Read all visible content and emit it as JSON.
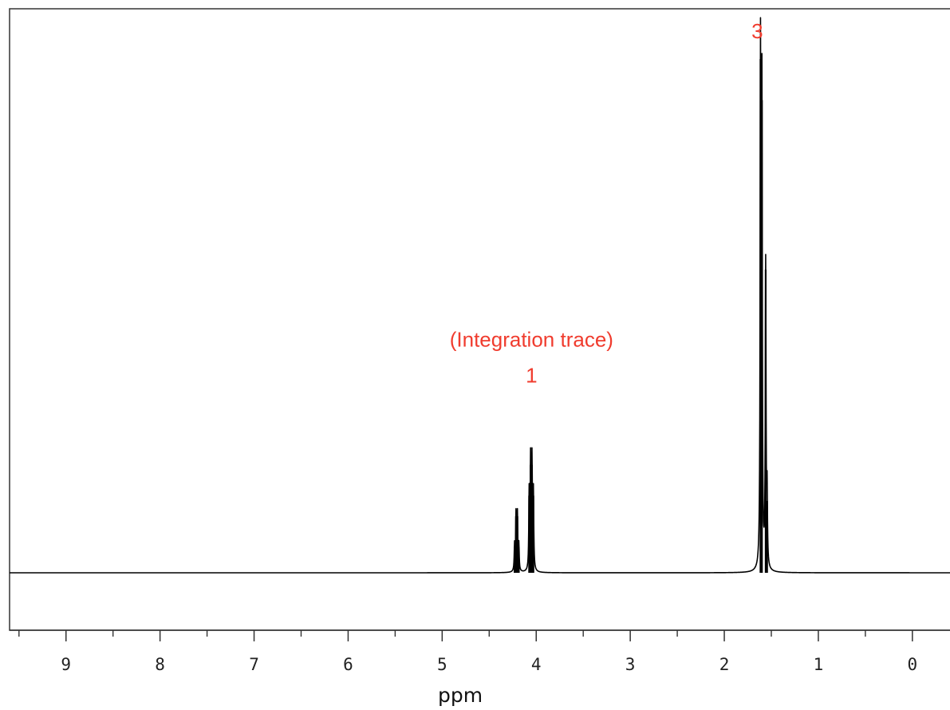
{
  "chart_data": {
    "type": "line",
    "xlabel": "ppm",
    "xlim": [
      9.6,
      -0.4
    ],
    "x_reversed": true,
    "ylim": [
      -0.12,
      1.0
    ],
    "grid": false,
    "legend": "none",
    "x_ticks": [
      {
        "value": 9,
        "label": "9"
      },
      {
        "value": 8,
        "label": "8"
      },
      {
        "value": 7,
        "label": "7"
      },
      {
        "value": 6,
        "label": "6"
      },
      {
        "value": 5,
        "label": "5"
      },
      {
        "value": 4,
        "label": "4"
      },
      {
        "value": 3,
        "label": "3"
      },
      {
        "value": 2,
        "label": "2"
      },
      {
        "value": 1,
        "label": "1"
      },
      {
        "value": 0,
        "label": "0"
      }
    ],
    "series": [
      {
        "color": "#000000",
        "peaks": [
          {
            "x": 4.23,
            "y": 0.05
          },
          {
            "x": 4.215,
            "y": 0.11
          },
          {
            "x": 4.2,
            "y": 0.11
          },
          {
            "x": 4.185,
            "y": 0.05
          },
          {
            "x": 4.075,
            "y": 0.15
          },
          {
            "x": 4.06,
            "y": 0.21
          },
          {
            "x": 4.045,
            "y": 0.21
          },
          {
            "x": 4.03,
            "y": 0.15
          },
          {
            "x": 1.615,
            "y": 1.0
          },
          {
            "x": 1.6,
            "y": 0.92
          },
          {
            "x": 1.56,
            "y": 0.59
          },
          {
            "x": 1.545,
            "y": 0.14
          }
        ]
      }
    ],
    "annotations": [
      {
        "text": "(Integration trace)",
        "x": 4.05,
        "y": 0.44,
        "color": "#f03c2e"
      },
      {
        "text": "1",
        "x": 4.05,
        "y": 0.37,
        "color": "#f03c2e"
      },
      {
        "text": "3",
        "x": 1.65,
        "y": 1.04,
        "color": "#f03c2e"
      }
    ]
  }
}
